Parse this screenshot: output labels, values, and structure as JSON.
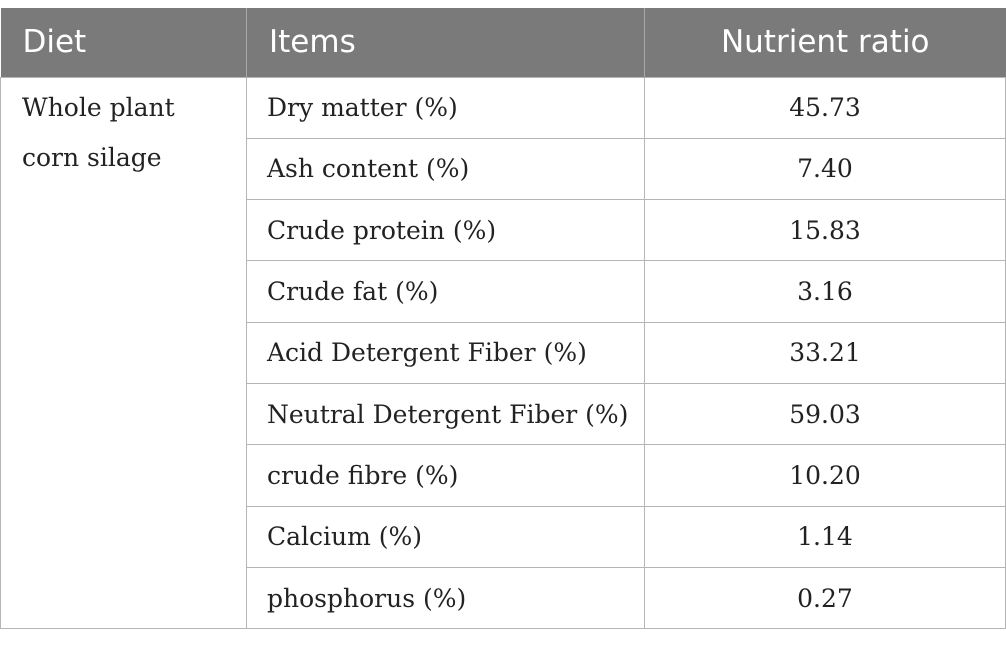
{
  "table": {
    "headers": {
      "diet": "Diet",
      "items": "Items",
      "ratio": "Nutrient ratio"
    },
    "diet": "Whole plant corn silage",
    "rows": [
      {
        "item": "Dry matter (%)",
        "value": "45.73"
      },
      {
        "item": "Ash content (%)",
        "value": "7.40"
      },
      {
        "item": "Crude protein (%)",
        "value": "15.83"
      },
      {
        "item": "Crude fat (%)",
        "value": "3.16"
      },
      {
        "item": "Acid Detergent Fiber (%)",
        "value": "33.21"
      },
      {
        "item": "Neutral Detergent Fiber (%)",
        "value": "59.03"
      },
      {
        "item": "crude fibre (%)",
        "value": "10.20"
      },
      {
        "item": "Calcium (%)",
        "value": "1.14"
      },
      {
        "item": "phosphorus (%)",
        "value": "0.27"
      }
    ],
    "colors": {
      "header_bg": "#7a7a7a",
      "header_text": "#ffffff",
      "border": "#b5b5b5"
    }
  }
}
